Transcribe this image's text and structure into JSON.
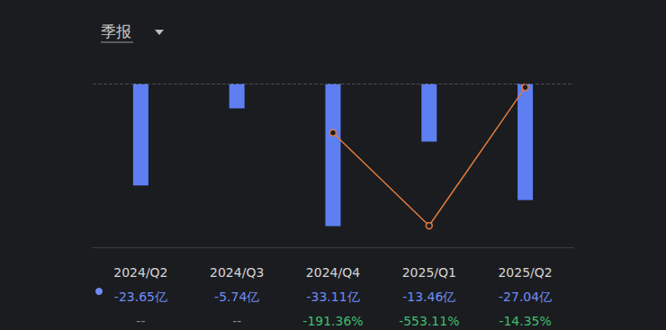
{
  "chart_data": {
    "type": "bar",
    "title": "季报",
    "categories": [
      "2024/Q2",
      "2024/Q3",
      "2024/Q4",
      "2025/Q1",
      "2025/Q2"
    ],
    "series": [
      {
        "type": "bar",
        "color": "#5d7ff2",
        "values": [
          -23.65,
          -5.74,
          -33.11,
          -13.46,
          -27.04
        ],
        "value_labels": [
          "-23.65亿",
          "-5.74亿",
          "-33.11亿",
          "-13.46亿",
          "-27.04亿"
        ]
      },
      {
        "type": "line",
        "axis": "y2",
        "color": "#e07b3c",
        "marker": "circle",
        "values": [
          null,
          null,
          -191.36,
          -553.11,
          -14.35
        ],
        "value_labels": [
          "--",
          "--",
          "-191.36%",
          "-553.11%",
          "-14.35%"
        ]
      }
    ],
    "ylim": [
      -38,
      0
    ],
    "yticks": [
      0
    ],
    "y2lim": [
      -637,
      0
    ],
    "y2ticks": [
      0
    ],
    "grid": true,
    "tick_labels": false
  }
}
